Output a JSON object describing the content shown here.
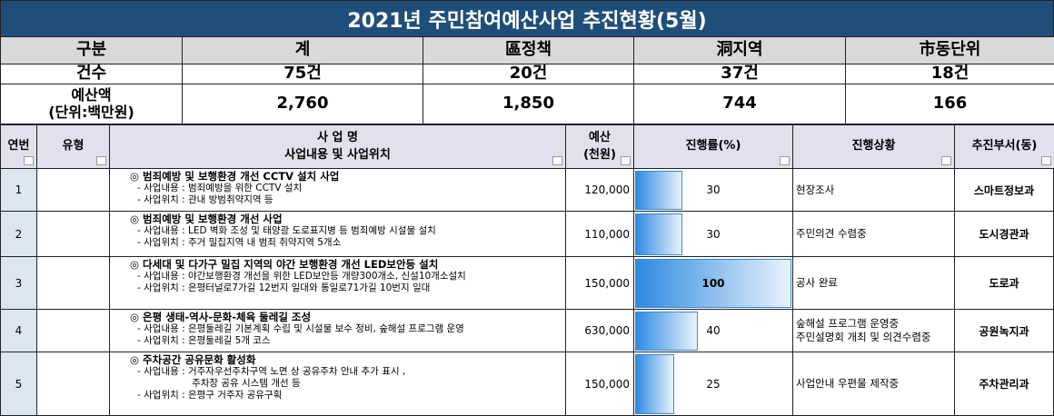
{
  "title": "2021년 주민참여예산사업 추진현황(5월)",
  "summary": {
    "headers": [
      "구분",
      "계",
      "區정책",
      "洞지역",
      "市동단위"
    ],
    "rows": [
      [
        "건수",
        "75건",
        "20건",
        "37건",
        "18건"
      ],
      [
        "예산액\n(단위:백만원)",
        "2,760",
        "1,850",
        "744",
        "166"
      ]
    ]
  },
  "table": {
    "headers": [
      "연번",
      "유형",
      "사 업 명\n사업내용 및 사업위치",
      "예산\n(천원)",
      "진행률(%)",
      "진행상황",
      "추진부서(동)"
    ],
    "rows": [
      {
        "no": "1",
        "title": "◎ 범죄예방 및 보행환경 개선 CCTV 설치 사업",
        "details": [
          "- 사업내용 : 범죄예방을 위한 CCTV 설치",
          "- 사업위치 : 관내 방범취약지역 등"
        ],
        "budget": "120,000",
        "progress": 30,
        "status": [
          "현장조사"
        ],
        "dept": "스마트정보과"
      },
      {
        "no": "2",
        "title": "◎ 범죄예방 및 보행환경 개선 사업",
        "details": [
          "- 사업내용 : LED 벽화 조성 및 태양광 도로표지병 등 범죄예방 시설물 설치",
          "- 사업위치 : 주거 밀집지역 내 범죄 취약지역 5개소"
        ],
        "budget": "110,000",
        "progress": 30,
        "status": [
          "주민의견 수렴중"
        ],
        "dept": "도시경관과"
      },
      {
        "no": "3",
        "title": "◎ 다세대 및 다가구 밀집 지역의 야간 보행환경 개선 LED보안등 설치",
        "details": [
          "- 사업내용 : 야간보행환경 개선을 위한 LED보안등 개량300개소, 신설10개소설치",
          "- 사업위치 : 은평터널로7가길 12번지 일대와 통일로71가길 10번지 일대"
        ],
        "budget": "150,000",
        "progress": 100,
        "status": [
          "공사 완료"
        ],
        "dept": "도로과"
      },
      {
        "no": "4",
        "title": "◎ 은평 생태-역사-문화-체육 둘레길 조성",
        "details": [
          "- 사업내용 : 은평둘레길 기본계획 수립 및 시설물 보수 정비, 숲해설 프로그램 운영",
          "- 사업위치 : 은평둘레길 5개 코스"
        ],
        "budget": "630,000",
        "progress": 40,
        "status": [
          "숲해설 프로그램 운영중",
          "주민설명회 개최 및 의견수렴중"
        ],
        "dept": "공원녹지과"
      },
      {
        "no": "5",
        "title": "◎ 주차공간 공유문화 활성화",
        "details": [
          "- 사업내용 : 거주자우선주차구역 노면 상 공유주차 안내 추가 표시 ,",
          "                  주차장 공유 시스템 개선 등",
          "- 사업위치 : 은평구 거주자 공유구획"
        ],
        "budget": "150,000",
        "progress": 25,
        "status": [
          "사업안내 우편물 제작중"
        ],
        "dept": "주차관리과"
      }
    ]
  }
}
